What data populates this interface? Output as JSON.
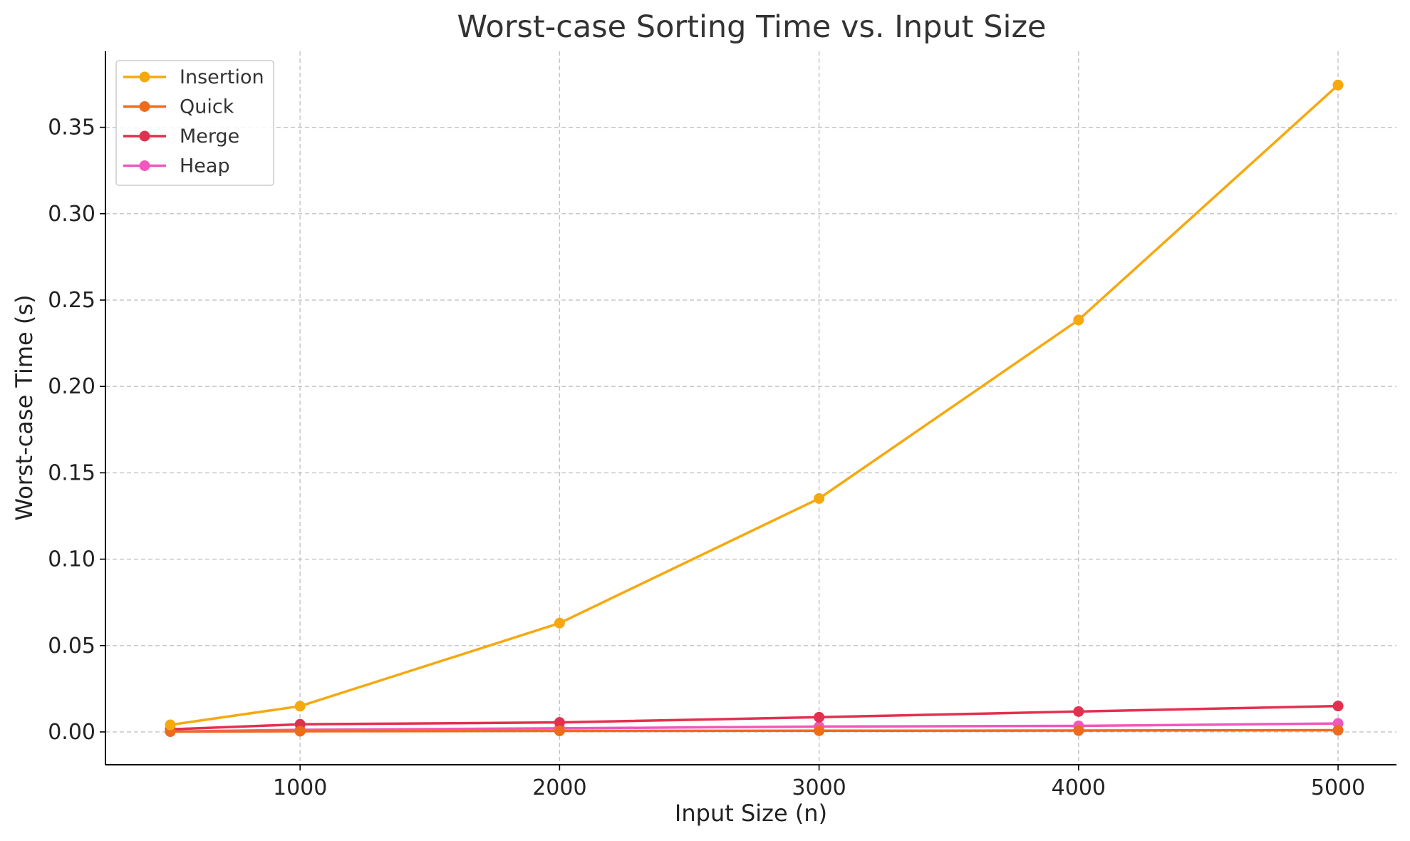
{
  "chart_data": {
    "type": "line",
    "title": "Worst-case Sorting Time vs. Input Size",
    "xlabel": "Input Size (n)",
    "ylabel": "Worst-case Time (s)",
    "x": [
      500,
      1000,
      2000,
      3000,
      4000,
      5000
    ],
    "xticks": [
      "1000",
      "2000",
      "3000",
      "4000",
      "5000"
    ],
    "yticks": [
      "0.00",
      "0.05",
      "0.10",
      "0.15",
      "0.20",
      "0.25",
      "0.30",
      "0.35"
    ],
    "xlim": [
      250,
      5225
    ],
    "ylim": [
      -0.019,
      0.394
    ],
    "grid": true,
    "legend_position": "top-left",
    "series": [
      {
        "name": "Insertion",
        "color": "#F5A90F",
        "values": [
          0.0041,
          0.0149,
          0.063,
          0.1351,
          0.2385,
          0.3745
        ]
      },
      {
        "name": "Quick",
        "color": "#EE6B1E",
        "values": [
          0.0002,
          0.0004,
          0.0006,
          0.0007,
          0.0008,
          0.001
        ]
      },
      {
        "name": "Merge",
        "color": "#E3304F",
        "values": [
          0.0015,
          0.0044,
          0.0055,
          0.0085,
          0.0118,
          0.015
        ]
      },
      {
        "name": "Heap",
        "color": "#F257BE",
        "values": [
          0.0002,
          0.0012,
          0.0021,
          0.0031,
          0.0035,
          0.0049
        ]
      }
    ]
  }
}
